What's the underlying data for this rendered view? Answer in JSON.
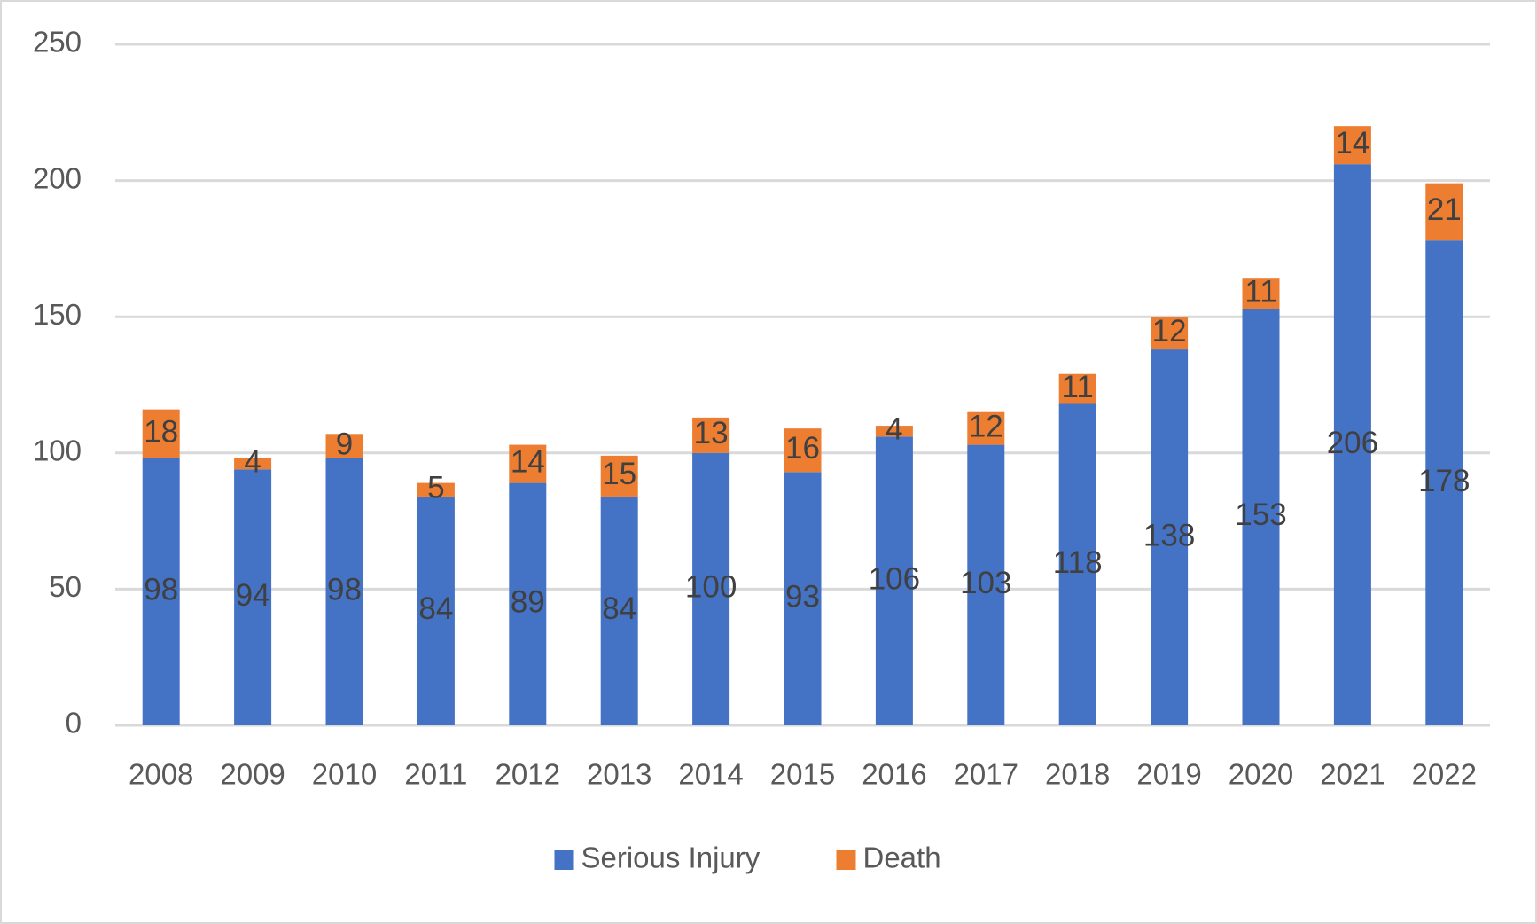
{
  "chart_data": {
    "type": "stacked-bar",
    "categories": [
      "2008",
      "2009",
      "2010",
      "2011",
      "2012",
      "2013",
      "2014",
      "2015",
      "2016",
      "2017",
      "2018",
      "2019",
      "2020",
      "2021",
      "2022"
    ],
    "series": [
      {
        "name": "Serious Injury",
        "color": "#4472c4",
        "values": [
          98,
          94,
          98,
          84,
          89,
          84,
          100,
          93,
          106,
          103,
          118,
          138,
          153,
          206,
          178
        ]
      },
      {
        "name": "Death",
        "color": "#ed7d31",
        "values": [
          18,
          4,
          9,
          5,
          14,
          15,
          13,
          16,
          4,
          12,
          11,
          12,
          11,
          14,
          21
        ]
      }
    ],
    "ylim": [
      0,
      250
    ],
    "yticks": [
      0,
      50,
      100,
      150,
      200,
      250
    ],
    "grid": true,
    "legend": "bottom"
  }
}
